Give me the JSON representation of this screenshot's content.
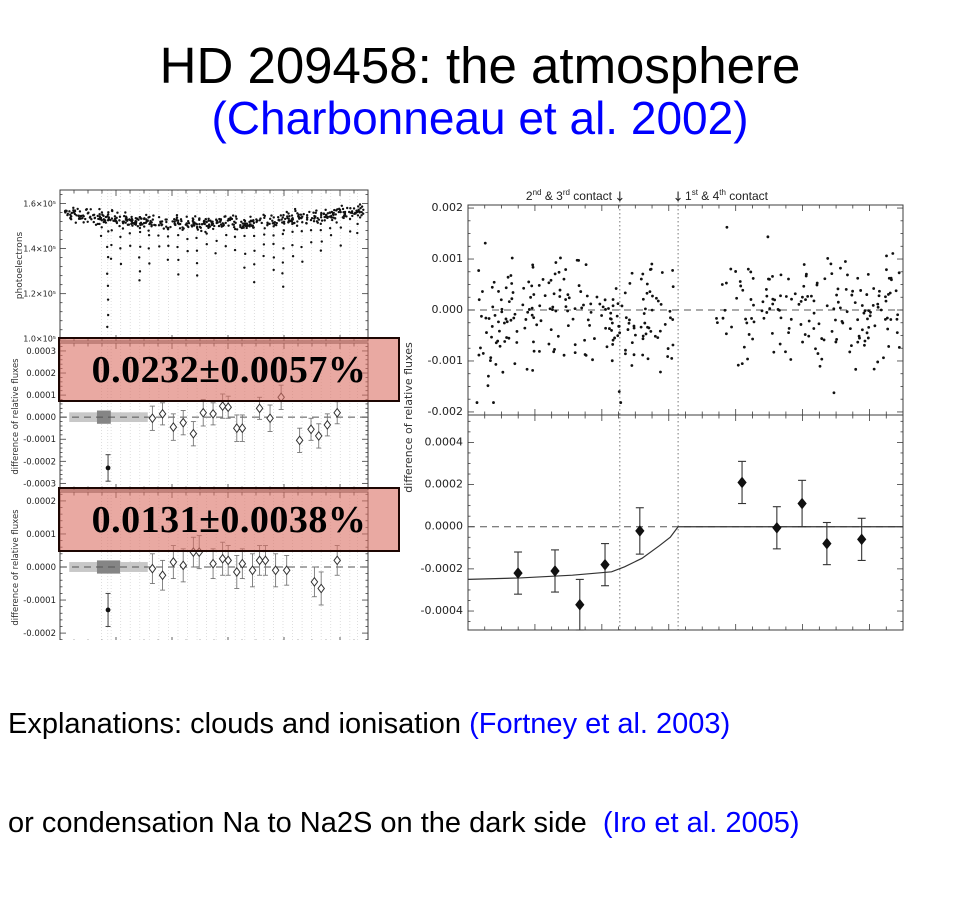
{
  "title": {
    "line1": "HD 209458: the atmosphere",
    "line2": "(Charbonneau et al. 2002)"
  },
  "footer": {
    "line1_black": "Explanations: clouds and ionisation ",
    "line1_blue": "(Fortney et al. 2003)",
    "line2_black": "or condensation Na to Na2S on the dark side  ",
    "line2_blue": "(Iro et al. 2005)"
  },
  "colors": {
    "subtitle_blue": "#0000ff",
    "citation_blue": "#0000ff",
    "highlight_fill": "rgba(218,112,100,0.6)",
    "highlight_border": "#1d0603",
    "point_black": "#111111",
    "gridline_gray": "#d6d6d6",
    "band_light": "#c8c8c8",
    "band_dark": "#858585"
  },
  "contacts": {
    "left": {
      "b1": "2",
      "s1": "nd",
      "b2": " & 3",
      "s2": "rd",
      "b3": " contact",
      "arrow": "↓"
    },
    "right": {
      "arrow": "↓",
      "b1": "1",
      "s1": "st",
      "b2": " & 4",
      "s2": "th",
      "b3": " contact"
    }
  },
  "chart_data": [
    {
      "id": "left-top",
      "type": "scatter",
      "title": "",
      "xlabel": "",
      "ylabel": "photoelectrons",
      "y_unit_note": "values in 1e5 photoelectrons",
      "ylim": [
        0.99,
        1.66
      ],
      "yticks": [
        {
          "v": 1.0,
          "t": "1.0×10⁵"
        },
        {
          "v": 1.2,
          "t": "1.2×10⁵"
        },
        {
          "v": 1.4,
          "t": "1.4×10⁵"
        },
        {
          "v": 1.6,
          "t": "1.6×10⁵"
        }
      ],
      "grid": true,
      "cloud": {
        "n": 520,
        "seed": 42,
        "baseline_edge": 1.562,
        "baseline_mid": 1.504,
        "tilt": 0.014,
        "sigma": 0.016
      },
      "dips": [
        {
          "x": 0.135,
          "d": 0.08
        },
        {
          "x": 0.155,
          "d": 0.48
        },
        {
          "x": 0.166,
          "d": 0.18
        },
        {
          "x": 0.197,
          "d": 0.2
        },
        {
          "x": 0.228,
          "d": 0.12
        },
        {
          "x": 0.259,
          "d": 0.27
        },
        {
          "x": 0.29,
          "d": 0.18
        },
        {
          "x": 0.321,
          "d": 0.1
        },
        {
          "x": 0.352,
          "d": 0.16
        },
        {
          "x": 0.383,
          "d": 0.22
        },
        {
          "x": 0.414,
          "d": 0.12
        },
        {
          "x": 0.445,
          "d": 0.24
        },
        {
          "x": 0.476,
          "d": 0.1
        },
        {
          "x": 0.507,
          "d": 0.14
        },
        {
          "x": 0.538,
          "d": 0.1
        },
        {
          "x": 0.569,
          "d": 0.12
        },
        {
          "x": 0.6,
          "d": 0.2
        },
        {
          "x": 0.631,
          "d": 0.26
        },
        {
          "x": 0.662,
          "d": 0.16
        },
        {
          "x": 0.693,
          "d": 0.22
        },
        {
          "x": 0.724,
          "d": 0.3
        },
        {
          "x": 0.755,
          "d": 0.16
        },
        {
          "x": 0.786,
          "d": 0.2
        },
        {
          "x": 0.817,
          "d": 0.12
        },
        {
          "x": 0.848,
          "d": 0.16
        },
        {
          "x": 0.879,
          "d": 0.1
        },
        {
          "x": 0.91,
          "d": 0.14
        },
        {
          "x": 0.941,
          "d": 0.08
        },
        {
          "x": 0.966,
          "d": 0.1
        }
      ]
    },
    {
      "id": "left-middle",
      "type": "errorbar",
      "title": "",
      "xlabel": "",
      "ylabel": "difference of relative fluxes",
      "ylim": [
        -0.00033,
        0.000336
      ],
      "yticks": [
        {
          "v": 0.0003,
          "t": "0.0003"
        },
        {
          "v": 0.0002,
          "t": "0.0002"
        },
        {
          "v": 0.0001,
          "t": "0.0001"
        },
        {
          "v": 0.0,
          "t": "0.0000"
        },
        {
          "v": -0.0001,
          "t": "-0.0001"
        },
        {
          "v": -0.0002,
          "t": "-0.0002"
        },
        {
          "v": -0.0003,
          "t": "-0.0003"
        }
      ],
      "zero_line": "dashed",
      "annotation": "0.0232±0.0057%",
      "band": {
        "x0": 0.03,
        "x1": 0.285,
        "half": 2.2e-05
      },
      "band_dark": {
        "x0": 0.12,
        "x1": 0.165,
        "half": 3e-05
      },
      "outlier": {
        "x": 0.156,
        "y": -0.00023,
        "e": 6e-05
      },
      "points": [
        {
          "x": 0.3,
          "y": -5e-06,
          "e": 5.5e-05
        },
        {
          "x": 0.333,
          "y": 1.5e-05,
          "e": 5e-05
        },
        {
          "x": 0.368,
          "y": -4.5e-05,
          "e": 6e-05
        },
        {
          "x": 0.4,
          "y": -2.5e-05,
          "e": 5.5e-05
        },
        {
          "x": 0.433,
          "y": -7.5e-05,
          "e": 5.5e-05
        },
        {
          "x": 0.465,
          "y": 2e-05,
          "e": 6e-05
        },
        {
          "x": 0.497,
          "y": 1.5e-05,
          "e": 5e-05
        },
        {
          "x": 0.528,
          "y": 5e-05,
          "e": 5.5e-05
        },
        {
          "x": 0.546,
          "y": 4.5e-05,
          "e": 5e-05
        },
        {
          "x": 0.574,
          "y": -5e-05,
          "e": 6e-05
        },
        {
          "x": 0.592,
          "y": -5e-05,
          "e": 6e-05
        },
        {
          "x": 0.648,
          "y": 4e-05,
          "e": 5e-05
        },
        {
          "x": 0.682,
          "y": -5e-06,
          "e": 6e-05
        },
        {
          "x": 0.718,
          "y": 9e-05,
          "e": 5.5e-05
        },
        {
          "x": 0.778,
          "y": -0.000105,
          "e": 5.5e-05
        },
        {
          "x": 0.815,
          "y": -5.5e-05,
          "e": 5e-05
        },
        {
          "x": 0.84,
          "y": -8.5e-05,
          "e": 5.5e-05
        },
        {
          "x": 0.868,
          "y": -3.5e-05,
          "e": 5e-05
        },
        {
          "x": 0.9,
          "y": 2e-05,
          "e": 5e-05
        }
      ]
    },
    {
      "id": "left-bottom",
      "type": "errorbar",
      "title": "",
      "xlabel": "",
      "ylabel": "difference of relative fluxes",
      "ylim": [
        -0.00023,
        0.000227
      ],
      "yticks": [
        {
          "v": 0.0002,
          "t": "0.0002"
        },
        {
          "v": 0.0001,
          "t": "0.0001"
        },
        {
          "v": 0.0,
          "t": "0.0000"
        },
        {
          "v": -0.0001,
          "t": "-0.0001"
        },
        {
          "v": -0.0002,
          "t": "-0.0002"
        }
      ],
      "zero_line": "dashed",
      "annotation": "0.0131±0.0038%",
      "band": {
        "x0": 0.03,
        "x1": 0.285,
        "half": 1.5e-05
      },
      "band_dark": {
        "x0": 0.12,
        "x1": 0.195,
        "half": 2e-05
      },
      "outlier": {
        "x": 0.156,
        "y": -0.00013,
        "e": 5e-05
      },
      "points": [
        {
          "x": 0.3,
          "y": -5e-06,
          "e": 4.5e-05
        },
        {
          "x": 0.333,
          "y": -2.5e-05,
          "e": 4.5e-05
        },
        {
          "x": 0.368,
          "y": 1.5e-05,
          "e": 5e-05
        },
        {
          "x": 0.4,
          "y": 5e-06,
          "e": 5e-05
        },
        {
          "x": 0.433,
          "y": 4.5e-05,
          "e": 4.5e-05
        },
        {
          "x": 0.452,
          "y": 4.5e-05,
          "e": 5e-05
        },
        {
          "x": 0.497,
          "y": 1e-05,
          "e": 4.5e-05
        },
        {
          "x": 0.528,
          "y": 2.5e-05,
          "e": 5e-05
        },
        {
          "x": 0.546,
          "y": 2e-05,
          "e": 4.5e-05
        },
        {
          "x": 0.574,
          "y": -1.5e-05,
          "e": 5e-05
        },
        {
          "x": 0.592,
          "y": 1e-05,
          "e": 4.5e-05
        },
        {
          "x": 0.625,
          "y": -1e-05,
          "e": 5e-05
        },
        {
          "x": 0.648,
          "y": 2e-05,
          "e": 4.5e-05
        },
        {
          "x": 0.667,
          "y": 2e-05,
          "e": 4.5e-05
        },
        {
          "x": 0.7,
          "y": -1e-05,
          "e": 5e-05
        },
        {
          "x": 0.736,
          "y": -1e-05,
          "e": 4.5e-05
        },
        {
          "x": 0.826,
          "y": -4.5e-05,
          "e": 4.5e-05
        },
        {
          "x": 0.848,
          "y": -6.5e-05,
          "e": 5e-05
        },
        {
          "x": 0.9,
          "y": 2e-05,
          "e": 4.5e-05
        }
      ]
    },
    {
      "id": "right-top",
      "type": "scatter",
      "title": "",
      "xlabel": "",
      "ylabel": "difference of relative fluxes",
      "ylim": [
        -0.00206,
        0.00206
      ],
      "yticks": [
        {
          "v": 0.002,
          "t": "0.002"
        },
        {
          "v": 0.001,
          "t": "0.001"
        },
        {
          "v": 0.0,
          "t": "0.000"
        },
        {
          "v": -0.001,
          "t": "-0.001"
        },
        {
          "v": -0.002,
          "t": "-0.002"
        }
      ],
      "zero_line": "dashed",
      "vlines": [
        0.349,
        0.483
      ],
      "annotations": [
        "2nd & 3rd contact",
        "1st & 4th contact"
      ],
      "clusters": [
        {
          "n": 215,
          "x0": 0.02,
          "x1": 0.475,
          "mean": -8e-05,
          "sigma": 0.00062,
          "seed": 3
        },
        {
          "n": 170,
          "x0": 0.565,
          "x1": 0.995,
          "mean": 0.0,
          "sigma": 0.00058,
          "seed": 9
        }
      ]
    },
    {
      "id": "right-bottom",
      "type": "errorbar-line",
      "title": "",
      "xlabel": "",
      "ylabel": "difference of relative fluxes",
      "ylim": [
        -0.00049,
        0.00053
      ],
      "yticks": [
        {
          "v": 0.0004,
          "t": "0.0004"
        },
        {
          "v": 0.0002,
          "t": "0.0002"
        },
        {
          "v": 0.0,
          "t": "0.0000"
        },
        {
          "v": -0.0002,
          "t": "-0.0002"
        },
        {
          "v": -0.0004,
          "t": "-0.0004"
        }
      ],
      "zero_line": "dashed",
      "vlines": [
        0.349,
        0.483
      ],
      "points": [
        {
          "x": 0.115,
          "y": -0.00022,
          "e": 0.0001
        },
        {
          "x": 0.2,
          "y": -0.00021,
          "e": 0.0001
        },
        {
          "x": 0.257,
          "y": -0.00037,
          "e": 0.00012
        },
        {
          "x": 0.315,
          "y": -0.00018,
          "e": 0.0001
        },
        {
          "x": 0.395,
          "y": -2e-05,
          "e": 0.00011
        },
        {
          "x": 0.63,
          "y": 0.00021,
          "e": 0.0001
        },
        {
          "x": 0.71,
          "y": -5e-06,
          "e": 0.0001
        },
        {
          "x": 0.768,
          "y": 0.00011,
          "e": 0.00011
        },
        {
          "x": 0.825,
          "y": -8e-05,
          "e": 0.0001
        },
        {
          "x": 0.905,
          "y": -6e-05,
          "e": 0.0001
        }
      ],
      "model": [
        [
          0.0,
          -0.00025
        ],
        [
          0.12,
          -0.000243
        ],
        [
          0.24,
          -0.00023
        ],
        [
          0.33,
          -0.000214
        ],
        [
          0.36,
          -0.00019
        ],
        [
          0.4,
          -0.00015
        ],
        [
          0.44,
          -9e-05
        ],
        [
          0.465,
          -5e-05
        ],
        [
          0.483,
          0.0
        ],
        [
          1.0,
          0.0
        ]
      ]
    }
  ]
}
